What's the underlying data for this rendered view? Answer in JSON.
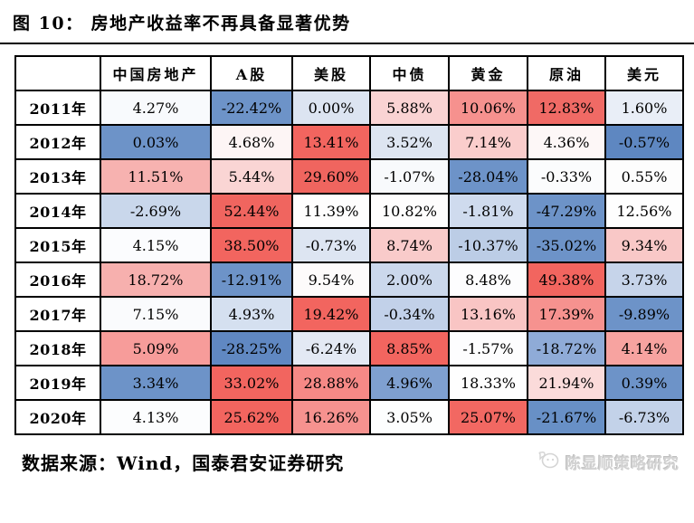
{
  "title": "图 10：  房地产收益率不再具备显著优势",
  "table": {
    "columns": [
      "",
      "中国房地产",
      "A股",
      "美股",
      "中债",
      "黄金",
      "原油",
      "美元"
    ],
    "rows": [
      {
        "year": "2011年",
        "cells": [
          {
            "v": "4.27%",
            "bg": "#F8FAFD"
          },
          {
            "v": "-22.42%",
            "bg": "#6D93C8"
          },
          {
            "v": "0.00%",
            "bg": "#DCE4F1"
          },
          {
            "v": "5.88%",
            "bg": "#FAD3D3"
          },
          {
            "v": "10.06%",
            "bg": "#F6918E"
          },
          {
            "v": "12.83%",
            "bg": "#F06A65"
          },
          {
            "v": "1.60%",
            "bg": "#E9EEF7"
          }
        ]
      },
      {
        "year": "2012年",
        "cells": [
          {
            "v": "0.03%",
            "bg": "#6D93C8"
          },
          {
            "v": "4.68%",
            "bg": "#FDF5F5"
          },
          {
            "v": "13.41%",
            "bg": "#F2655F"
          },
          {
            "v": "3.52%",
            "bg": "#DDE5F1"
          },
          {
            "v": "7.14%",
            "bg": "#FACDCC"
          },
          {
            "v": "4.36%",
            "bg": "#FDF7F7"
          },
          {
            "v": "-0.57%",
            "bg": "#5E87C1"
          }
        ]
      },
      {
        "year": "2013年",
        "cells": [
          {
            "v": "11.51%",
            "bg": "#F7B2B0"
          },
          {
            "v": "5.44%",
            "bg": "#FAD5D4"
          },
          {
            "v": "29.60%",
            "bg": "#F0655F"
          },
          {
            "v": "-1.07%",
            "bg": "#F8FAFC"
          },
          {
            "v": "-28.04%",
            "bg": "#6D93C8"
          },
          {
            "v": "-0.33%",
            "bg": "#FBFCFD"
          },
          {
            "v": "0.55%",
            "bg": "#FDFDFD"
          }
        ]
      },
      {
        "year": "2014年",
        "cells": [
          {
            "v": "-2.69%",
            "bg": "#C9D7EB"
          },
          {
            "v": "52.44%",
            "bg": "#F0655F"
          },
          {
            "v": "11.39%",
            "bg": "#FEFDFD"
          },
          {
            "v": "10.82%",
            "bg": "#FEFDFD"
          },
          {
            "v": "-1.81%",
            "bg": "#CFDBEE"
          },
          {
            "v": "-47.29%",
            "bg": "#6D93C8"
          },
          {
            "v": "12.56%",
            "bg": "#FEFEFE"
          }
        ]
      },
      {
        "year": "2015年",
        "cells": [
          {
            "v": "4.15%",
            "bg": "#FBFCFE"
          },
          {
            "v": "38.50%",
            "bg": "#F2655F"
          },
          {
            "v": "-0.73%",
            "bg": "#DDE5F2"
          },
          {
            "v": "8.74%",
            "bg": "#F9CBCA"
          },
          {
            "v": "-10.37%",
            "bg": "#BCCDE6"
          },
          {
            "v": "-35.02%",
            "bg": "#6D93C8"
          },
          {
            "v": "9.34%",
            "bg": "#F9C8C7"
          }
        ]
      },
      {
        "year": "2016年",
        "cells": [
          {
            "v": "18.72%",
            "bg": "#F7B0AE"
          },
          {
            "v": "-12.91%",
            "bg": "#6D93C8"
          },
          {
            "v": "9.54%",
            "bg": "#FDFBFB"
          },
          {
            "v": "2.00%",
            "bg": "#CBD8EC"
          },
          {
            "v": "8.48%",
            "bg": "#FDFDFE"
          },
          {
            "v": "49.38%",
            "bg": "#F2655F"
          },
          {
            "v": "3.73%",
            "bg": "#C6D4EA"
          }
        ]
      },
      {
        "year": "2017年",
        "cells": [
          {
            "v": "7.15%",
            "bg": "#FAFBFD"
          },
          {
            "v": "4.93%",
            "bg": "#D5E0F0"
          },
          {
            "v": "19.42%",
            "bg": "#F2655F"
          },
          {
            "v": "-0.34%",
            "bg": "#C2D1E9"
          },
          {
            "v": "13.16%",
            "bg": "#F9C5C4"
          },
          {
            "v": "17.39%",
            "bg": "#F6928F"
          },
          {
            "v": "-9.89%",
            "bg": "#6D93C8"
          }
        ]
      },
      {
        "year": "2018年",
        "cells": [
          {
            "v": "5.09%",
            "bg": "#F79C9A"
          },
          {
            "v": "-28.25%",
            "bg": "#6088C2"
          },
          {
            "v": "-6.24%",
            "bg": "#E3E9F4"
          },
          {
            "v": "8.85%",
            "bg": "#F2655F"
          },
          {
            "v": "-1.57%",
            "bg": "#FDFDFE"
          },
          {
            "v": "-18.72%",
            "bg": "#8FABD7"
          },
          {
            "v": "4.14%",
            "bg": "#F7A3A0"
          }
        ]
      },
      {
        "year": "2019年",
        "cells": [
          {
            "v": "3.34%",
            "bg": "#6D93C8"
          },
          {
            "v": "33.02%",
            "bg": "#F2655F"
          },
          {
            "v": "28.88%",
            "bg": "#F68986"
          },
          {
            "v": "4.96%",
            "bg": "#7FA0D0"
          },
          {
            "v": "18.33%",
            "bg": "#FEFEFE"
          },
          {
            "v": "21.94%",
            "bg": "#FBDBDA"
          },
          {
            "v": "0.39%",
            "bg": "#6D93C8"
          }
        ]
      },
      {
        "year": "2020年",
        "cells": [
          {
            "v": "4.13%",
            "bg": "#FCFDFE"
          },
          {
            "v": "25.62%",
            "bg": "#F2655F"
          },
          {
            "v": "16.26%",
            "bg": "#F6928F"
          },
          {
            "v": "3.05%",
            "bg": "#FDFEFE"
          },
          {
            "v": "25.07%",
            "bg": "#F26862"
          },
          {
            "v": "-21.67%",
            "bg": "#6890C6"
          },
          {
            "v": "-6.73%",
            "bg": "#C3D2E9"
          }
        ]
      }
    ]
  },
  "footer": {
    "source": "数据来源：Wind，国泰君安证券研究",
    "watermark": "陈显顺策略研究"
  },
  "colors": {
    "heat_max_red": "#F2655F",
    "heat_mid_white": "#FEFEFE",
    "heat_min_blue": "#5E87C1",
    "border": "#000000",
    "watermark_gray": "#D2D2D2"
  },
  "chart_data": {
    "type": "heatmap",
    "title": "图 10：房地产收益率不再具备显著优势",
    "categories": [
      "2011年",
      "2012年",
      "2013年",
      "2014年",
      "2015年",
      "2016年",
      "2017年",
      "2018年",
      "2019年",
      "2020年"
    ],
    "series": [
      {
        "name": "中国房地产",
        "values": [
          4.27,
          0.03,
          11.51,
          -2.69,
          4.15,
          18.72,
          7.15,
          5.09,
          3.34,
          4.13
        ]
      },
      {
        "name": "A股",
        "values": [
          -22.42,
          4.68,
          5.44,
          52.44,
          38.5,
          -12.91,
          4.93,
          -28.25,
          33.02,
          25.62
        ]
      },
      {
        "name": "美股",
        "values": [
          0.0,
          13.41,
          29.6,
          11.39,
          -0.73,
          9.54,
          19.42,
          -6.24,
          28.88,
          16.26
        ]
      },
      {
        "name": "中债",
        "values": [
          5.88,
          3.52,
          -1.07,
          10.82,
          8.74,
          2.0,
          -0.34,
          8.85,
          4.96,
          3.05
        ]
      },
      {
        "name": "黄金",
        "values": [
          10.06,
          7.14,
          -28.04,
          -1.81,
          -10.37,
          8.48,
          13.16,
          -1.57,
          18.33,
          25.07
        ]
      },
      {
        "name": "原油",
        "values": [
          12.83,
          4.36,
          -0.33,
          -47.29,
          -35.02,
          49.38,
          17.39,
          -18.72,
          21.94,
          -21.67
        ]
      },
      {
        "name": "美元",
        "values": [
          1.6,
          -0.57,
          0.55,
          12.56,
          9.34,
          3.73,
          -9.89,
          4.14,
          0.39,
          -6.73
        ]
      }
    ],
    "unit": "%",
    "layout": "rows are years, columns are asset classes; cell color scaled red (high) to blue (low)",
    "source_note": "数据来源：Wind，国泰君安证券研究"
  }
}
